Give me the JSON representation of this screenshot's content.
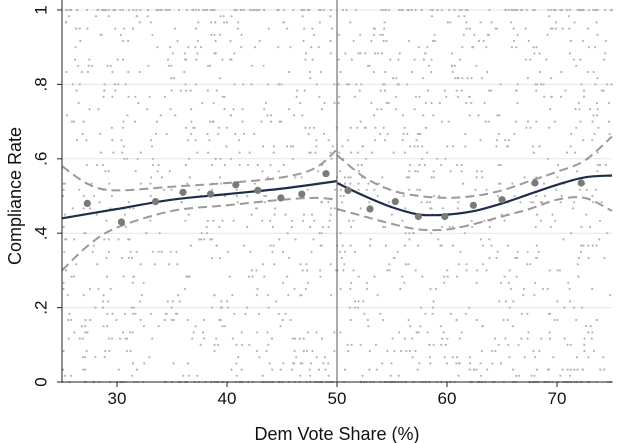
{
  "chart_data": {
    "type": "scatter",
    "xlabel": "Dem Vote Share (%)",
    "ylabel": "Compliance Rate",
    "xlim": [
      25,
      75
    ],
    "ylim": [
      0,
      1
    ],
    "xticks": [
      30,
      40,
      50,
      60,
      70
    ],
    "xtick_labels": [
      "30",
      "40",
      "50",
      "60",
      "70"
    ],
    "yticks": [
      0,
      0.2,
      0.4,
      0.6,
      0.8,
      1
    ],
    "ytick_labels": [
      "0",
      ".2",
      ".4",
      ".6",
      ".8",
      "1"
    ],
    "grid": true,
    "cutoff": 50,
    "binned_means": {
      "x": [
        27.3,
        30.4,
        33.5,
        36.0,
        38.5,
        40.8,
        42.8,
        44.9,
        46.8,
        49.0,
        51.0,
        53.0,
        55.3,
        57.4,
        59.8,
        62.4,
        65.0,
        68.0,
        72.2
      ],
      "y": [
        0.48,
        0.43,
        0.485,
        0.51,
        0.505,
        0.53,
        0.515,
        0.495,
        0.505,
        0.56,
        0.515,
        0.465,
        0.485,
        0.445,
        0.445,
        0.475,
        0.49,
        0.535,
        0.535
      ]
    },
    "fit_left": {
      "x": [
        25,
        30,
        35,
        40,
        45,
        50
      ],
      "y": [
        0.44,
        0.465,
        0.49,
        0.505,
        0.52,
        0.54
      ]
    },
    "fit_right": {
      "x": [
        50,
        52.5,
        55,
        57.5,
        60,
        62.5,
        65,
        67.5,
        70,
        72.5,
        75
      ],
      "y": [
        0.535,
        0.5,
        0.47,
        0.45,
        0.45,
        0.46,
        0.48,
        0.505,
        0.53,
        0.55,
        0.555
      ]
    },
    "ci_left_upper": {
      "x": [
        25,
        27.5,
        30,
        35,
        40,
        45,
        48,
        50
      ],
      "y": [
        0.58,
        0.53,
        0.515,
        0.525,
        0.535,
        0.55,
        0.575,
        0.625
      ]
    },
    "ci_left_lower": {
      "x": [
        25,
        27.5,
        30,
        35,
        40,
        45,
        48,
        50
      ],
      "y": [
        0.3,
        0.37,
        0.415,
        0.46,
        0.475,
        0.49,
        0.495,
        0.49
      ]
    },
    "ci_right_upper": {
      "x": [
        50,
        52.5,
        55,
        57.5,
        60,
        62.5,
        65,
        67.5,
        70,
        72.5,
        75
      ],
      "y": [
        0.61,
        0.55,
        0.515,
        0.5,
        0.495,
        0.5,
        0.515,
        0.54,
        0.565,
        0.595,
        0.66
      ]
    },
    "ci_right_lower": {
      "x": [
        50,
        52.5,
        55,
        57.5,
        60,
        62.5,
        65,
        67.5,
        70,
        72.5,
        75
      ],
      "y": [
        0.465,
        0.445,
        0.425,
        0.41,
        0.41,
        0.425,
        0.445,
        0.465,
        0.49,
        0.495,
        0.46
      ]
    },
    "colors": {
      "fit_line": "#1f2d4d",
      "ci_line": "#9a9a9a",
      "binned_mean": "#7a7a7a",
      "scatter": "#b4b4b4",
      "grid": "#e6e6e6",
      "cutoff_line": "#555555"
    },
    "raw_scatter_description": "dense cloud of individual points spanning x 25-75 and y 0-1, with clusters at y=0 and y=1"
  }
}
